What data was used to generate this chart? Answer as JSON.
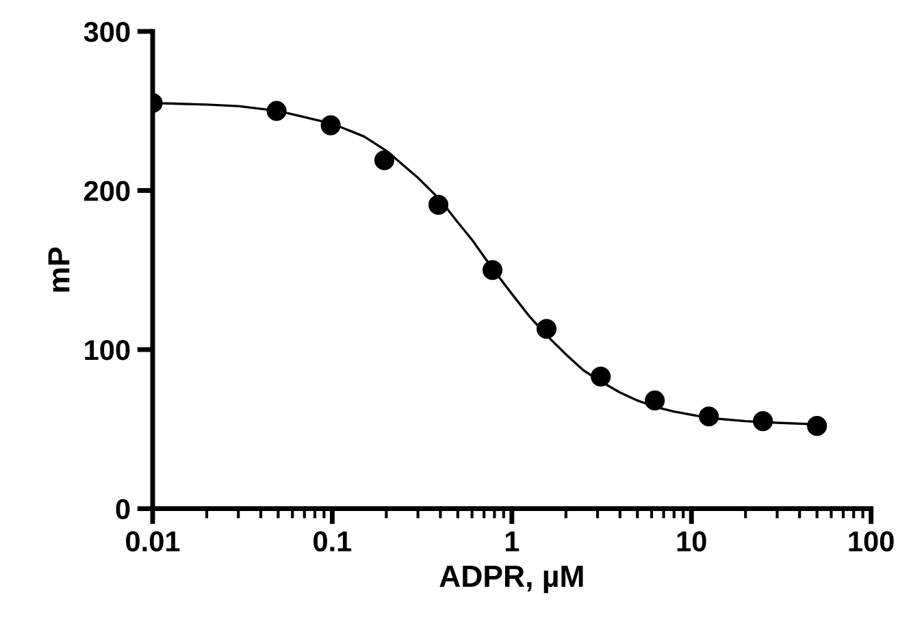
{
  "chart_data": {
    "type": "scatter",
    "xlabel": "ADPR, µM",
    "ylabel": "mP",
    "log": "x",
    "xlim": [
      0.01,
      100
    ],
    "xticks": [
      0.01,
      0.1,
      1,
      10,
      100
    ],
    "ylim": [
      0,
      300
    ],
    "yticks": [
      0,
      100,
      200,
      300
    ],
    "grid": false,
    "legend": false,
    "series": [
      {
        "marker": "circle",
        "color": "#000000",
        "x": [
          0.01,
          0.049,
          0.098,
          0.195,
          0.39,
          0.78,
          1.56,
          3.125,
          6.25,
          12.5,
          25,
          50
        ],
        "values": [
          255,
          250,
          241,
          219,
          191,
          150,
          113,
          83,
          68,
          58,
          55,
          52
        ]
      },
      {
        "type": "line",
        "marker": "none",
        "line_style": "solid",
        "color": "#000000",
        "x": [
          0.01,
          0.02,
          0.03,
          0.05,
          0.1,
          0.15,
          0.2,
          0.3,
          0.4,
          0.5,
          0.6,
          0.78,
          1,
          1.25,
          1.56,
          2,
          2.5,
          3.125,
          4,
          5,
          6.25,
          8,
          12.5,
          20,
          30,
          50
        ],
        "values": [
          255,
          254,
          253,
          250,
          242,
          234,
          225,
          208,
          194,
          180,
          169,
          151,
          135,
          121,
          109,
          97,
          87,
          80,
          73,
          68,
          64,
          61,
          57,
          55,
          54,
          53
        ]
      }
    ]
  }
}
